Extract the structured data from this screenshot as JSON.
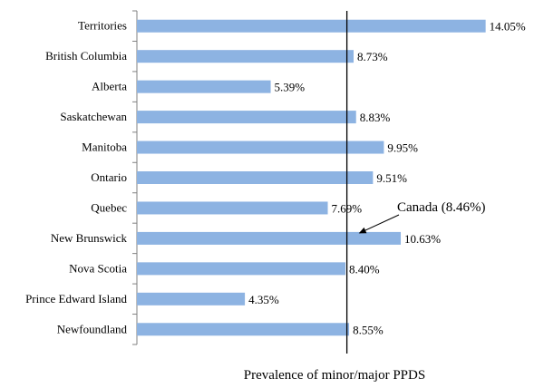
{
  "chart_data": {
    "type": "bar",
    "orientation": "horizontal",
    "categories": [
      "Territories",
      "British Columbia",
      "Alberta",
      "Saskatchewan",
      "Manitoba",
      "Ontario",
      "Quebec",
      "New Brunswick",
      "Nova Scotia",
      "Prince Edward Island",
      "Newfoundland"
    ],
    "values": [
      14.05,
      8.73,
      5.39,
      8.83,
      9.95,
      9.51,
      7.69,
      10.63,
      8.4,
      4.35,
      8.55
    ],
    "value_labels": [
      "14.05%",
      "8.73%",
      "5.39%",
      "8.83%",
      "9.95%",
      "9.51%",
      "7.69%",
      "10.63%",
      "8.40%",
      "4.35%",
      "8.55%"
    ],
    "title": "",
    "xlabel": "Prevalence of minor/major PPDS",
    "ylabel": "",
    "xlim": [
      0,
      14.1
    ],
    "reference_line": {
      "value": 8.46,
      "label": "Canada (8.46%)"
    },
    "bar_color": "#8db3e2",
    "grid": false,
    "legend": "none"
  }
}
